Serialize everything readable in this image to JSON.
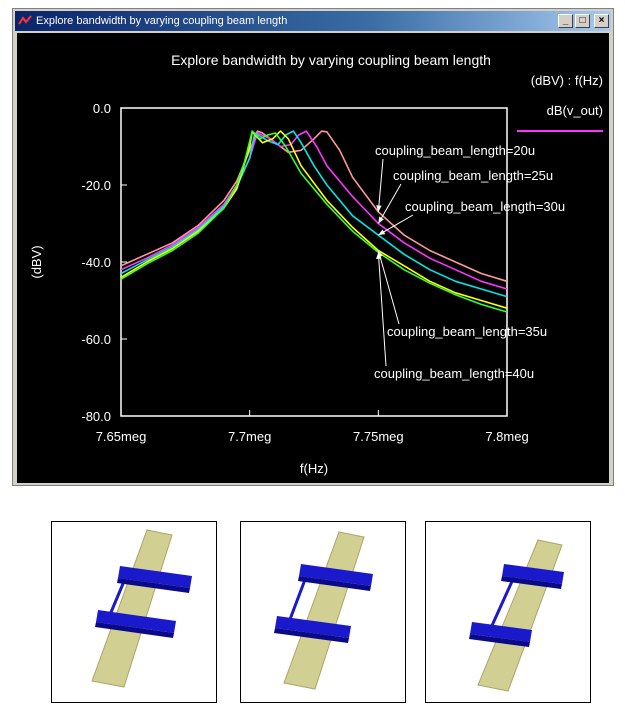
{
  "window": {
    "title": "Explore bandwidth by varying coupling beam length",
    "minimize_glyph": "_",
    "maximize_glyph": "□",
    "close_glyph": "×"
  },
  "chart_data": {
    "type": "line",
    "title": "Explore bandwidth by varying coupling beam length",
    "xlabel": "f(Hz)",
    "ylabel": "(dBV)",
    "axis_caption": "(dBV) : f(Hz)",
    "legend_label": "dB(v_out)",
    "legend_color": "#ff33ff",
    "xlim": [
      7.65,
      7.8
    ],
    "ylim": [
      -80,
      0
    ],
    "x_ticks": [
      7.65,
      7.7,
      7.75,
      7.8
    ],
    "x_tick_labels": [
      "7.65meg",
      "7.7meg",
      "7.75meg",
      "7.8meg"
    ],
    "y_ticks": [
      0,
      -20,
      -40,
      -60,
      -80
    ],
    "y_tick_labels": [
      "0.0",
      "-20.0",
      "-40.0",
      "-60.0",
      "-80.0"
    ],
    "series": [
      {
        "name": "coupling_beam_length=20u",
        "color": "#ff9999",
        "x": [
          7.65,
          7.66,
          7.67,
          7.68,
          7.69,
          7.695,
          7.7,
          7.703,
          7.705,
          7.71,
          7.715,
          7.72,
          7.725,
          7.728,
          7.73,
          7.735,
          7.74,
          7.75,
          7.76,
          7.77,
          7.78,
          7.79,
          7.8
        ],
        "y": [
          -41,
          -38,
          -35,
          -30.5,
          -24,
          -19,
          -11,
          -6,
          -6.5,
          -9,
          -11.5,
          -11,
          -8,
          -6,
          -6.2,
          -11,
          -18,
          -27,
          -33,
          -37,
          -40,
          -43,
          -45
        ]
      },
      {
        "name": "coupling_beam_length=25u",
        "color": "#ff33ff",
        "x": [
          7.65,
          7.66,
          7.67,
          7.68,
          7.69,
          7.695,
          7.7,
          7.703,
          7.708,
          7.712,
          7.716,
          7.719,
          7.722,
          7.726,
          7.73,
          7.74,
          7.75,
          7.76,
          7.77,
          7.78,
          7.79,
          7.8
        ],
        "y": [
          -42,
          -39,
          -35.5,
          -31,
          -25,
          -20,
          -13,
          -6.5,
          -8,
          -10,
          -9.5,
          -7,
          -6,
          -10,
          -15,
          -23,
          -30,
          -35,
          -39,
          -42,
          -45,
          -47
        ]
      },
      {
        "name": "coupling_beam_length=30u",
        "color": "#00e5e5",
        "x": [
          7.65,
          7.66,
          7.67,
          7.68,
          7.69,
          7.695,
          7.7,
          7.702,
          7.707,
          7.711,
          7.714,
          7.717,
          7.72,
          7.725,
          7.73,
          7.74,
          7.75,
          7.76,
          7.77,
          7.78,
          7.79,
          7.8
        ],
        "y": [
          -43,
          -39.5,
          -36,
          -31.5,
          -25.5,
          -20.5,
          -13,
          -6.5,
          -8.5,
          -9.5,
          -7,
          -6,
          -9,
          -15,
          -20,
          -28,
          -33,
          -38,
          -42,
          -45,
          -47,
          -49
        ]
      },
      {
        "name": "coupling_beam_length=35u",
        "color": "#ffff00",
        "x": [
          7.65,
          7.66,
          7.67,
          7.68,
          7.69,
          7.695,
          7.7,
          7.701,
          7.705,
          7.709,
          7.712,
          7.715,
          7.72,
          7.73,
          7.74,
          7.75,
          7.76,
          7.77,
          7.78,
          7.79,
          7.8
        ],
        "y": [
          -44,
          -40,
          -36.5,
          -32,
          -26,
          -21,
          -10,
          -6.2,
          -9,
          -8,
          -6,
          -8,
          -15,
          -24,
          -31,
          -37,
          -41,
          -45,
          -48,
          -50,
          -52
        ]
      },
      {
        "name": "coupling_beam_length=40u",
        "color": "#33ff33",
        "x": [
          7.65,
          7.66,
          7.67,
          7.68,
          7.69,
          7.695,
          7.698,
          7.701,
          7.704,
          7.707,
          7.71,
          7.714,
          7.72,
          7.73,
          7.74,
          7.75,
          7.76,
          7.77,
          7.78,
          7.79,
          7.8
        ],
        "y": [
          -44.5,
          -40.5,
          -37,
          -32.5,
          -26,
          -20,
          -14,
          -6,
          -8,
          -7,
          -6.5,
          -10,
          -17,
          -25,
          -32,
          -37.5,
          -42,
          -45.5,
          -48.5,
          -51,
          -53
        ]
      }
    ],
    "annotations": [
      {
        "text": "coupling_beam_length=20u",
        "series": "coupling_beam_length=20u",
        "target_x": 7.75
      },
      {
        "text": "coupling_beam_length=25u",
        "series": "coupling_beam_length=25u",
        "target_x": 7.75
      },
      {
        "text": "coupling_beam_length=30u",
        "series": "coupling_beam_length=30u",
        "target_x": 7.75
      },
      {
        "text": "coupling_beam_length=35u",
        "series": "coupling_beam_length=35u",
        "target_x": 7.75
      },
      {
        "text": "coupling_beam_length=40u",
        "series": "coupling_beam_length=40u",
        "target_x": 7.75
      }
    ]
  },
  "colors": {
    "beam_blue": "#1a1acc",
    "beam_blue_dark": "#0a0a88",
    "anchor_tan": "#d2cf92",
    "anchor_tan_dark": "#a9a66a"
  }
}
